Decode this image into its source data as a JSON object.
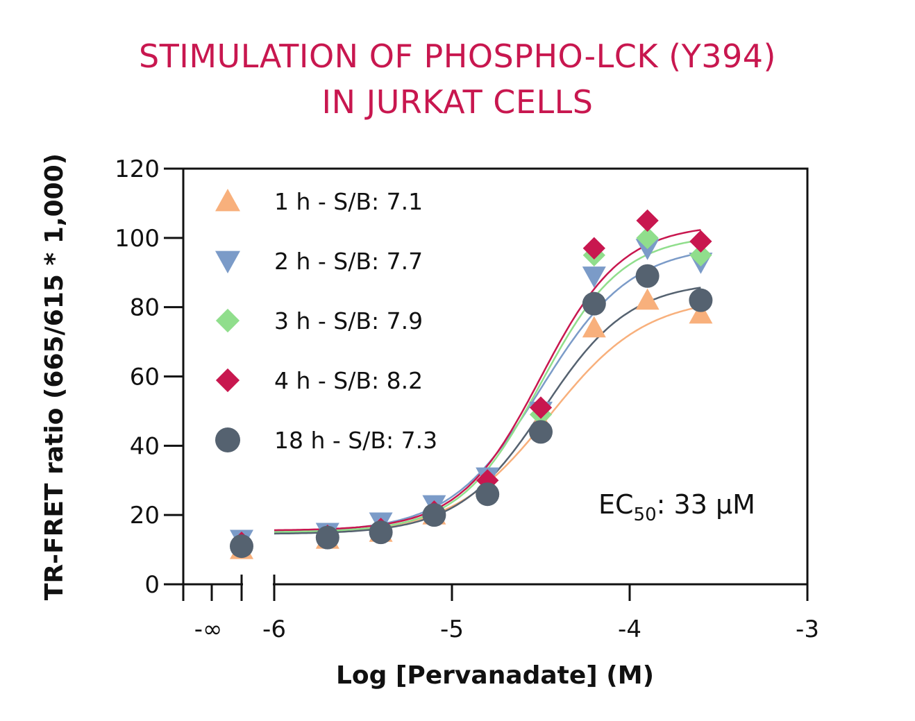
{
  "chart_data": {
    "type": "scatter",
    "title_line1": "STIMULATION OF PHOSPHO-LCK (Y394)",
    "title_line2": "IN JURKAT CELLS",
    "xlabel": "Log [Pervanadate] (M)",
    "ylabel": "TR-FRET ratio (665/615 * 1,000)",
    "xlim": [
      -6,
      -3
    ],
    "ylim": [
      0,
      120
    ],
    "x_ticks": [
      {
        "value": -6,
        "label": "-6"
      },
      {
        "value": -5,
        "label": "-5"
      },
      {
        "value": -4,
        "label": "-4"
      },
      {
        "value": -3,
        "label": "-3"
      }
    ],
    "y_ticks": [
      {
        "value": 0,
        "label": "0"
      },
      {
        "value": 20,
        "label": "20"
      },
      {
        "value": 40,
        "label": "40"
      },
      {
        "value": 60,
        "label": "60"
      },
      {
        "value": 80,
        "label": "80"
      },
      {
        "value": 100,
        "label": "100"
      },
      {
        "value": 120,
        "label": "120"
      }
    ],
    "neg_inf_label": "-∞",
    "legend_position": "top-left",
    "annotation": {
      "prefix": "EC",
      "sub": "50",
      "suffix": ": 33 μM"
    },
    "x": [
      -5.7,
      -5.4,
      -5.1,
      -4.8,
      -4.5,
      -4.2,
      -3.9,
      -3.6
    ],
    "series": [
      {
        "name": "1 h - S/B: 7.1",
        "marker": "triangle-up",
        "color": "#f8b07c",
        "neg_inf_value": 10,
        "values": [
          13,
          15,
          20,
          28,
          47,
          74,
          82,
          78
        ],
        "fit": {
          "bottom": 14.5,
          "top": 83,
          "logec50": -4.45,
          "hill": 1.6
        }
      },
      {
        "name": "2 h - S/B: 7.7",
        "marker": "triangle-down",
        "color": "#7b9bc8",
        "neg_inf_value": 13,
        "values": [
          15,
          18,
          23,
          31,
          50,
          89,
          97,
          93
        ],
        "fit": {
          "bottom": 15,
          "top": 98,
          "logec50": -4.5,
          "hill": 1.7
        }
      },
      {
        "name": "3 h - S/B: 7.9",
        "marker": "diamond",
        "color": "#90de8c",
        "neg_inf_value": 12,
        "values": [
          14,
          16,
          21,
          30,
          49,
          95,
          100,
          95
        ],
        "fit": {
          "bottom": 15,
          "top": 101,
          "logec50": -4.5,
          "hill": 1.9
        }
      },
      {
        "name": "4 h - S/B: 8.2",
        "marker": "diamond",
        "color": "#c8174f",
        "neg_inf_value": 12,
        "values": [
          14,
          16,
          21,
          30,
          51,
          97,
          105,
          99
        ],
        "fit": {
          "bottom": 15.5,
          "top": 104,
          "logec50": -4.5,
          "hill": 1.9
        }
      },
      {
        "name": "18 h - S/B: 7.3",
        "marker": "circle",
        "color": "#556270",
        "neg_inf_value": 11,
        "values": [
          13.5,
          15,
          20,
          26,
          44,
          81,
          89,
          82
        ],
        "fit": {
          "bottom": 14.5,
          "top": 87.5,
          "logec50": -4.48,
          "hill": 1.8
        }
      }
    ]
  }
}
